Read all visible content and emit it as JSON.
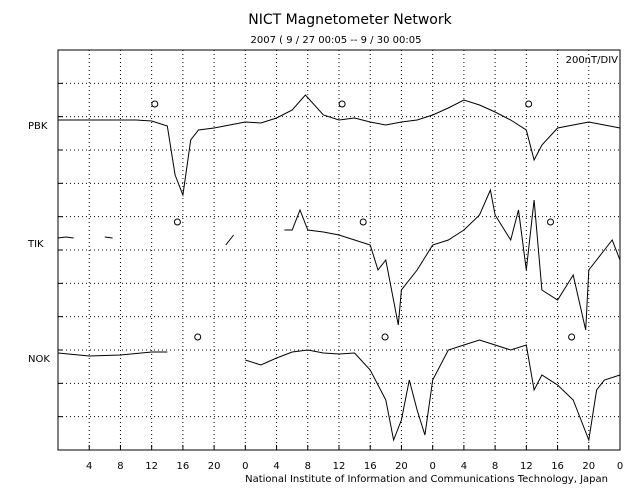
{
  "chart_data": {
    "type": "line",
    "title": "NICT Magnetometer Network",
    "subtitle": "2007 ( 9 / 27   00:05 -- 9 / 30   00:05",
    "scale_label": "200nT/DIV",
    "footer": "National Institute of Information and Communications Technology, Japan",
    "xlim": [
      0,
      72
    ],
    "xticks": [
      4,
      8,
      12,
      16,
      20,
      {
        "value": 24,
        "label": "0"
      },
      {
        "value": 28,
        "label": "4"
      },
      {
        "value": 32,
        "label": "8"
      },
      {
        "value": 36,
        "label": "12"
      },
      {
        "value": 40,
        "label": "16"
      },
      {
        "value": 44,
        "label": "20"
      },
      {
        "value": 48,
        "label": "0"
      },
      {
        "value": 52,
        "label": "4"
      },
      {
        "value": 56,
        "label": "8"
      },
      {
        "value": 60,
        "label": "12"
      },
      {
        "value": 64,
        "label": "16"
      },
      {
        "value": 68,
        "label": "20"
      },
      {
        "value": 72,
        "label": "0"
      }
    ],
    "ylim": [
      0,
      12
    ],
    "yticks": [
      1,
      2,
      3,
      4,
      5,
      6,
      7,
      8,
      9,
      10,
      11
    ],
    "grid": true,
    "series": [
      {
        "name": "PBK",
        "color": "#000000",
        "x": [
          0,
          2,
          4,
          6,
          8,
          10,
          12,
          14,
          15,
          16,
          17,
          18,
          20,
          22,
          24,
          26,
          28,
          30,
          31.7,
          34,
          36,
          38,
          40,
          42,
          44,
          46,
          48,
          50,
          52,
          54,
          56,
          58,
          60,
          61,
          62,
          64,
          66,
          68,
          70,
          72
        ],
        "values": [
          9.9,
          9.9,
          9.9,
          9.9,
          9.9,
          9.9,
          9.87,
          9.72,
          8.25,
          7.65,
          9.3,
          9.6,
          9.66,
          9.75,
          9.84,
          9.81,
          9.96,
          10.2,
          10.65,
          10.05,
          9.9,
          9.96,
          9.84,
          9.75,
          9.84,
          9.9,
          10.05,
          10.26,
          10.5,
          10.35,
          10.14,
          9.9,
          9.6,
          8.7,
          9.15,
          9.66,
          9.75,
          9.84,
          9.75,
          9.66
        ],
        "markers": [
          12.4,
          36.4,
          60.3
        ]
      },
      {
        "name": "TIK",
        "color": "#000000",
        "x": [
          0,
          1,
          2,
          3,
          6,
          7,
          8,
          21.5,
          22,
          22.5,
          23,
          29,
          30,
          31,
          32,
          34,
          36,
          38,
          40,
          41,
          42,
          43.6,
          44,
          46,
          48,
          50,
          52,
          54,
          55.4,
          56,
          58,
          59,
          60,
          61,
          62,
          64,
          66,
          67.6,
          68,
          70,
          71,
          72
        ],
        "values": [
          6.36,
          6.39,
          6.36,
          null,
          6.39,
          6.36,
          null,
          6.15,
          6.3,
          6.45,
          null,
          6.6,
          6.6,
          7.2,
          6.6,
          6.54,
          6.45,
          6.3,
          6.15,
          5.4,
          5.7,
          3.75,
          4.8,
          5.4,
          6.15,
          6.3,
          6.6,
          7.05,
          7.8,
          7.05,
          6.3,
          7.2,
          5.4,
          7.5,
          4.8,
          4.5,
          5.25,
          3.6,
          5.4,
          6.0,
          6.3,
          5.7
        ],
        "markers": [
          15.3,
          39.1,
          63.1
        ]
      },
      {
        "name": "NOK",
        "color": "#000000",
        "x": [
          0,
          4,
          8,
          12,
          14,
          14.5,
          24,
          26,
          28,
          30,
          32,
          34,
          36,
          38,
          40,
          42,
          43,
          44,
          45,
          46,
          47,
          48,
          50,
          52,
          54,
          56,
          58,
          60,
          61,
          62,
          64,
          66,
          68,
          69,
          70,
          72
        ],
        "values": [
          2.91,
          2.82,
          2.85,
          2.94,
          2.94,
          null,
          2.7,
          2.55,
          2.76,
          2.94,
          3.0,
          2.91,
          2.88,
          2.91,
          2.4,
          1.5,
          0.3,
          0.9,
          2.1,
          1.2,
          0.45,
          2.1,
          3.0,
          3.15,
          3.3,
          3.15,
          3.0,
          3.15,
          1.8,
          2.25,
          1.95,
          1.5,
          0.3,
          1.8,
          2.1,
          2.25
        ],
        "markers": [
          17.9,
          41.9,
          65.8
        ]
      }
    ]
  }
}
